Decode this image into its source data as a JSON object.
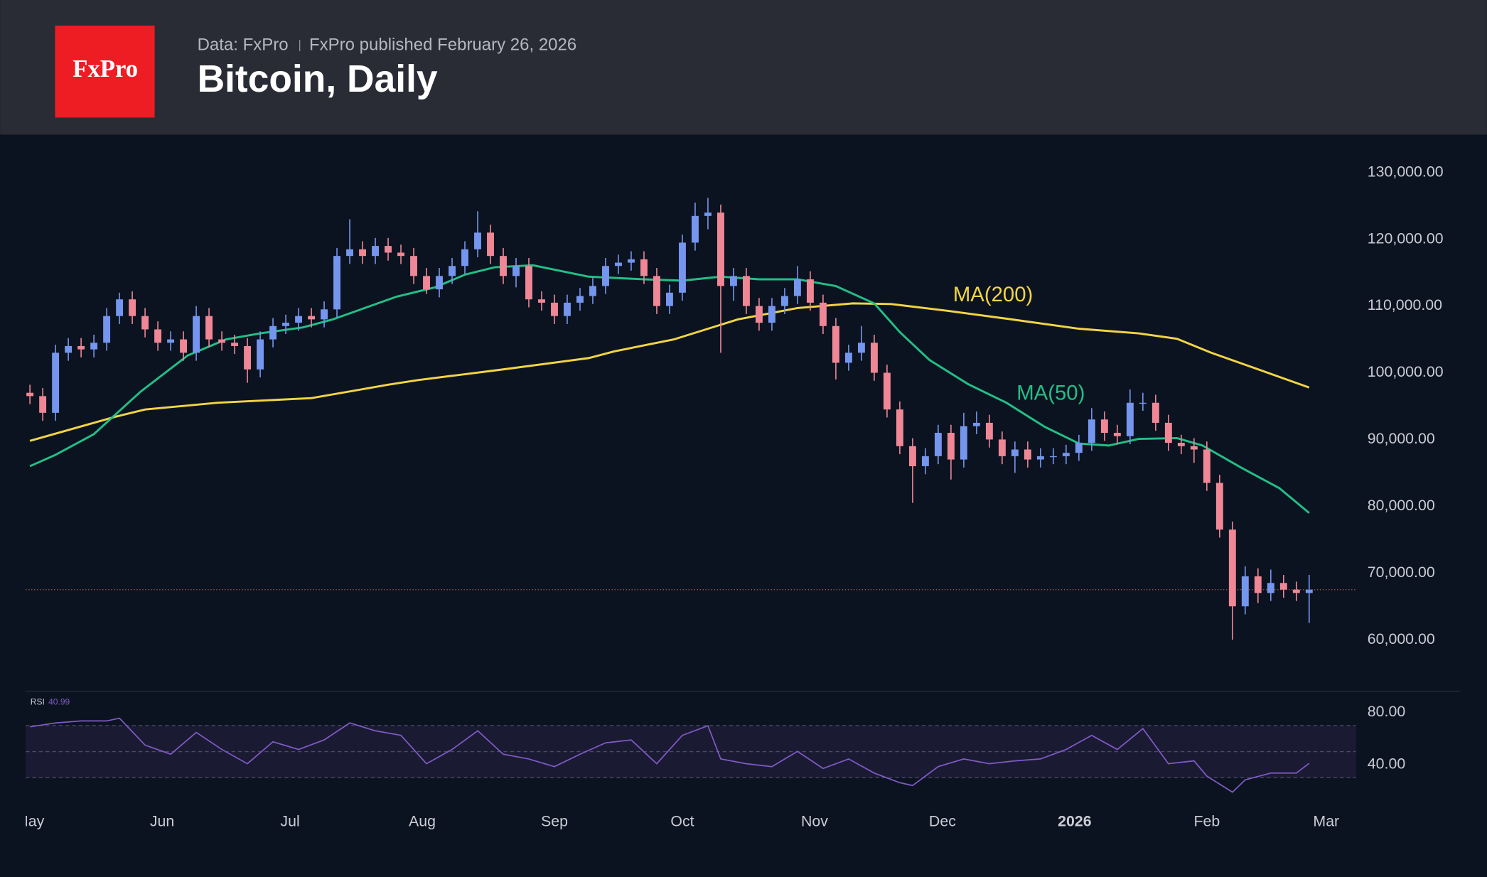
{
  "chart_data": {
    "type": "candlestick",
    "logo": "FxPro",
    "source": "Data: FxPro",
    "published": "FxPro published February 26, 2026",
    "title": "Bitcoin, Daily",
    "up_color": "#7596ee",
    "down_color": "#ef8796",
    "last_line_color": "#9a5a4e",
    "grid": false,
    "xlim": [
      -1,
      311
    ],
    "xticks": [
      {
        "value": 0,
        "label": "May"
      },
      {
        "value": 31,
        "label": "Jun"
      },
      {
        "value": 61,
        "label": "Jul"
      },
      {
        "value": 92,
        "label": "Aug"
      },
      {
        "value": 123,
        "label": "Sep"
      },
      {
        "value": 153,
        "label": "Oct"
      },
      {
        "value": 184,
        "label": "Nov"
      },
      {
        "value": 214,
        "label": "Dec"
      },
      {
        "value": 245,
        "label": "2026"
      },
      {
        "value": 276,
        "label": "Feb"
      },
      {
        "value": 304,
        "label": "Mar"
      }
    ],
    "ylim": [
      53000,
      135000
    ],
    "yticks": [
      {
        "value": 130000,
        "label": "130,000.00"
      },
      {
        "value": 120000,
        "label": "120,000.00"
      },
      {
        "value": 110000,
        "label": "110,000.00"
      },
      {
        "value": 100000,
        "label": "100,000.00"
      },
      {
        "value": 90000,
        "label": "90,000.00"
      },
      {
        "value": 80000,
        "label": "80,000.00"
      },
      {
        "value": 70000,
        "label": "70,000.00"
      },
      {
        "value": 60000,
        "label": "60,000.00"
      }
    ],
    "x": [
      0,
      3,
      6,
      9,
      12,
      15,
      18,
      21,
      24,
      27,
      30,
      33,
      36,
      39,
      42,
      45,
      48,
      51,
      54,
      57,
      60,
      63,
      66,
      69,
      72,
      75,
      78,
      81,
      84,
      87,
      90,
      93,
      96,
      99,
      102,
      105,
      108,
      111,
      114,
      117,
      120,
      123,
      126,
      129,
      132,
      135,
      138,
      141,
      144,
      147,
      150,
      153,
      156,
      159,
      162,
      165,
      168,
      171,
      174,
      177,
      180,
      183,
      186,
      189,
      192,
      195,
      198,
      201,
      204,
      207,
      210,
      213,
      216,
      219,
      222,
      225,
      228,
      231,
      234,
      237,
      240,
      243,
      246,
      249,
      252,
      255,
      258,
      261,
      264,
      267,
      270,
      273,
      276,
      279,
      282,
      285,
      288,
      291,
      294,
      297,
      300
    ],
    "open": [
      97000,
      96500,
      94000,
      103000,
      104000,
      103500,
      104500,
      108500,
      111000,
      108500,
      106500,
      104500,
      105000,
      103000,
      108500,
      105000,
      104500,
      104000,
      100500,
      105000,
      107000,
      107500,
      108500,
      108000,
      109500,
      117500,
      118500,
      117500,
      119000,
      118000,
      117500,
      114500,
      112500,
      114500,
      116000,
      118500,
      121000,
      117500,
      114500,
      116000,
      111000,
      110500,
      108500,
      110500,
      111500,
      113000,
      116000,
      116500,
      117000,
      114500,
      110000,
      112000,
      119500,
      123500,
      124000,
      113000,
      114500,
      110000,
      107500,
      110000,
      111500,
      114000,
      110500,
      107000,
      101500,
      103000,
      104500,
      100000,
      94500,
      89000,
      86000,
      87500,
      91000,
      87000,
      92000,
      92500,
      90000,
      87500,
      88500,
      87000,
      87500,
      87500,
      88000,
      89500,
      93000,
      91000,
      90500,
      95500,
      95500,
      92500,
      89500,
      89000,
      88500,
      83500,
      76500,
      65000,
      69500,
      67000,
      68500,
      67500,
      67000
    ],
    "high": [
      98200,
      97700,
      104200,
      105200,
      105200,
      105700,
      109700,
      112000,
      112200,
      109700,
      107700,
      106200,
      106200,
      110000,
      109700,
      106200,
      105700,
      105200,
      106200,
      108200,
      108700,
      109700,
      109700,
      110700,
      118700,
      123000,
      119700,
      120200,
      120200,
      119200,
      118700,
      115700,
      115700,
      117200,
      119700,
      124200,
      122200,
      118700,
      117200,
      117200,
      112200,
      111700,
      111700,
      112700,
      114200,
      117200,
      117700,
      118200,
      118200,
      115700,
      113200,
      120700,
      125500,
      126200,
      125200,
      115700,
      115700,
      111200,
      111200,
      112700,
      116000,
      115200,
      111700,
      108200,
      104200,
      107000,
      105700,
      101200,
      95700,
      90200,
      88700,
      92200,
      92200,
      94000,
      94200,
      93700,
      91200,
      89700,
      89700,
      88700,
      88700,
      89200,
      90700,
      94700,
      94200,
      92200,
      97500,
      97000,
      96700,
      93700,
      90700,
      90200,
      89700,
      84700,
      77700,
      71000,
      70700,
      70500,
      69700,
      68700,
      69700
    ],
    "low": [
      95300,
      92800,
      92800,
      101800,
      102300,
      102300,
      103300,
      107300,
      107300,
      105300,
      103300,
      103300,
      101800,
      101800,
      103800,
      103300,
      102800,
      98500,
      99300,
      103800,
      105800,
      106300,
      106800,
      106800,
      108300,
      116300,
      116300,
      116300,
      116800,
      116300,
      113300,
      111800,
      111300,
      113300,
      114800,
      117300,
      116300,
      113300,
      112800,
      109800,
      109300,
      107300,
      107300,
      109300,
      110300,
      111800,
      114800,
      115300,
      113300,
      108800,
      108800,
      110800,
      118300,
      121500,
      103000,
      110800,
      108800,
      106300,
      106300,
      108800,
      110300,
      109300,
      105800,
      99000,
      100300,
      101800,
      98800,
      93300,
      87800,
      80500,
      84800,
      86300,
      84000,
      85800,
      90800,
      88800,
      86300,
      85000,
      85800,
      85800,
      86300,
      86300,
      86800,
      88300,
      89800,
      89300,
      89300,
      94300,
      91300,
      88300,
      87800,
      86500,
      82300,
      75300,
      60000,
      63800,
      65500,
      65800,
      66300,
      65800,
      62500
    ],
    "close": [
      96500,
      94000,
      103000,
      104000,
      103500,
      104500,
      108500,
      111000,
      108500,
      106500,
      104500,
      105000,
      103000,
      108500,
      105000,
      104500,
      104000,
      100500,
      105000,
      107000,
      107500,
      108500,
      108000,
      109500,
      117500,
      118500,
      117500,
      119000,
      118000,
      117500,
      114500,
      112500,
      114500,
      116000,
      118500,
      121000,
      117500,
      114500,
      116000,
      111000,
      110500,
      108500,
      110500,
      111500,
      113000,
      116000,
      116500,
      117000,
      114500,
      110000,
      112000,
      119500,
      123500,
      124000,
      113000,
      114500,
      110000,
      107500,
      110000,
      111500,
      114000,
      110500,
      107000,
      101500,
      103000,
      104500,
      100000,
      94500,
      89000,
      86000,
      87500,
      91000,
      87000,
      92000,
      92500,
      90000,
      87500,
      88500,
      87000,
      87500,
      87500,
      88000,
      89500,
      93000,
      91000,
      90500,
      95500,
      95500,
      92500,
      89500,
      89000,
      88500,
      83500,
      76500,
      65000,
      69500,
      67000,
      68500,
      67500,
      67000,
      67500
    ],
    "series": [
      {
        "name": "MA(200)",
        "color": "#f2d544",
        "x": [
          0,
          20,
          27,
          44,
          66,
          84,
          91,
          111,
          131,
          137,
          151,
          166,
          180,
          193,
          202,
          215,
          229,
          246,
          260,
          269,
          277,
          289,
          300
        ],
        "values": [
          89800,
          93400,
          94500,
          95500,
          96200,
          98200,
          98900,
          100500,
          102200,
          103200,
          105000,
          108000,
          109700,
          110400,
          110300,
          109300,
          108100,
          106600,
          105900,
          105100,
          103000,
          100300,
          97800
        ]
      },
      {
        "name": "MA(50)",
        "color": "#22bf86",
        "x": [
          0,
          6,
          15,
          26,
          37,
          46,
          54,
          64,
          71,
          86,
          95,
          102,
          109,
          118,
          131,
          144,
          153,
          162,
          171,
          180,
          189,
          198,
          204,
          211,
          220,
          229,
          238,
          246,
          253,
          260,
          269,
          275,
          284,
          293,
          300
        ],
        "values": [
          86000,
          87700,
          90800,
          97200,
          102600,
          105000,
          105900,
          106800,
          108000,
          111400,
          112800,
          114700,
          115800,
          116100,
          114400,
          114000,
          113800,
          114400,
          114000,
          114000,
          113000,
          110400,
          106100,
          101900,
          98300,
          95500,
          91900,
          89400,
          89100,
          90100,
          90200,
          89100,
          85800,
          82700,
          79000
        ]
      }
    ],
    "rsi": {
      "name": "RSI",
      "color": "#7e5bc6",
      "band_color": "#1b1a33",
      "ylim": [
        12,
        92
      ],
      "yticks": [
        {
          "value": 80,
          "label": "80.00"
        },
        {
          "value": 40,
          "label": "40.00"
        }
      ],
      "bands": [
        70,
        50,
        30
      ],
      "x": [
        0,
        6,
        12,
        18,
        21,
        27,
        33,
        39,
        45,
        51,
        57,
        63,
        69,
        75,
        81,
        87,
        93,
        99,
        105,
        111,
        117,
        123,
        129,
        135,
        141,
        147,
        153,
        159,
        162,
        168,
        174,
        180,
        186,
        192,
        198,
        204,
        207,
        213,
        219,
        225,
        231,
        237,
        243,
        249,
        255,
        261,
        267,
        273,
        276,
        282,
        285,
        291,
        297,
        300
      ],
      "values": [
        69,
        72,
        73.5,
        73.5,
        75.6,
        55,
        48,
        64.7,
        51.6,
        40.7,
        57.5,
        51.6,
        59,
        72,
        66,
        62.5,
        40.7,
        51.6,
        66,
        48,
        44.4,
        38.5,
        48,
        56.7,
        59,
        40.7,
        62.5,
        69.8,
        44.4,
        40.7,
        38.5,
        50.2,
        37.1,
        44.4,
        33.5,
        26.2,
        24,
        38.5,
        44.4,
        40.7,
        42.9,
        44.4,
        51.6,
        62.5,
        51.6,
        67.6,
        40.7,
        42.9,
        31.3,
        18.9,
        28.4,
        33.5,
        33.5,
        40.99
      ]
    }
  }
}
